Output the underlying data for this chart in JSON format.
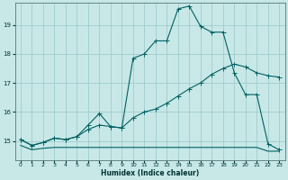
{
  "xlabel": "Humidex (Indice chaleur)",
  "bg_color": "#c8e8e8",
  "grid_color": "#a0cccc",
  "line_color": "#006060",
  "xlim": [
    -0.5,
    23.5
  ],
  "ylim": [
    14.35,
    19.75
  ],
  "yticks": [
    15,
    16,
    17,
    18,
    19
  ],
  "xticks": [
    0,
    1,
    2,
    3,
    4,
    5,
    6,
    7,
    8,
    9,
    10,
    11,
    12,
    13,
    14,
    15,
    16,
    17,
    18,
    19,
    20,
    21,
    22,
    23
  ],
  "line_max_y": [
    15.05,
    14.85,
    14.95,
    15.1,
    15.05,
    15.15,
    15.55,
    15.95,
    15.5,
    15.45,
    17.85,
    18.0,
    18.45,
    18.45,
    19.55,
    19.65,
    18.95,
    18.75,
    18.75,
    17.35,
    16.6,
    16.6,
    14.9,
    14.7
  ],
  "line_avg_y": [
    15.05,
    14.85,
    14.95,
    15.1,
    15.05,
    15.15,
    15.4,
    15.55,
    15.5,
    15.45,
    15.8,
    16.0,
    16.1,
    16.3,
    16.55,
    16.8,
    17.0,
    17.3,
    17.5,
    17.65,
    17.55,
    17.35,
    17.25,
    17.2
  ],
  "line_min_y": [
    14.85,
    14.7,
    14.75,
    14.78,
    14.78,
    14.78,
    14.78,
    14.78,
    14.78,
    14.78,
    14.78,
    14.78,
    14.78,
    14.78,
    14.78,
    14.78,
    14.78,
    14.78,
    14.78,
    14.78,
    14.78,
    14.78,
    14.65,
    14.65
  ]
}
